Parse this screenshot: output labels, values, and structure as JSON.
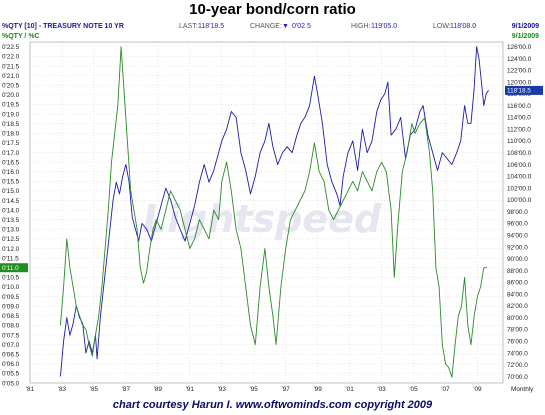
{
  "title": "10-year bond/corn ratio",
  "header": {
    "symbol": "%QTY [10] - TREASURY NOTE 10 YR",
    "last_label": "LAST:",
    "last_value": "118'18.5",
    "change_label": "CHANGE:",
    "change_value": "0'02.5",
    "high_label": "HIGH:",
    "high_value": "119'05.0",
    "low_label": "LOW:",
    "low_value": "118'08.0",
    "date": "9/1/2009",
    "symbol2": "%QTY / %C",
    "date2": "9/1/2009"
  },
  "watermark": "Lightspeed",
  "credit": "chart courtesy Harun I.  www.oftwominds.com  copyright 2009",
  "colors": {
    "bond": "#1c1ca8",
    "ratio": "#2a8a2a",
    "grid": "#c8c8c8",
    "ratio_marker": "#1f8f1f",
    "bond_marker": "#1a3aa8"
  },
  "chart_data": {
    "type": "line",
    "title": "10-year bond/corn ratio",
    "x_ticks": [
      "'81",
      "'83",
      "'85",
      "'87",
      "'89",
      "'91",
      "'93",
      "'95",
      "'97",
      "'99",
      "'01",
      "'03",
      "'05",
      "'07",
      "'09"
    ],
    "x_period_label": "Monthly",
    "xlim": [
      1981,
      2010.6
    ],
    "left_axis": {
      "ticks": [
        "0'22.5",
        "0'22.0",
        "0'21.5",
        "0'21.0",
        "0'20.5",
        "0'20.0",
        "0'19.5",
        "0'19.0",
        "0'18.5",
        "0'18.0",
        "0'17.5",
        "0'17.0",
        "0'16.5",
        "0'16.0",
        "0'15.5",
        "0'15.0",
        "0'14.5",
        "0'14.0",
        "0'13.5",
        "0'13.0",
        "0'12.5",
        "0'12.0",
        "0'11.5",
        "0'11.0",
        "0'10.5",
        "0'10.0",
        "0'09.5",
        "0'09.0",
        "0'08.5",
        "0'08.0",
        "0'07.5",
        "0'07.0",
        "0'06.5",
        "0'06.0",
        "0'05.5",
        "0'05.0"
      ],
      "ylim": [
        5.0,
        22.75
      ],
      "marker_label": "0'11.0",
      "marker_value": 11.0
    },
    "right_axis": {
      "ticks": [
        "126'00.0",
        "124'00.0",
        "122'00.0",
        "120'00.0",
        "118'00.0",
        "116'00.0",
        "114'00.0",
        "112'00.0",
        "110'00.0",
        "108'00.0",
        "106'00.0",
        "104'00.0",
        "102'00.0",
        "100'00.0",
        "98'00.0",
        "96'00.0",
        "94'00.0",
        "92'00.0",
        "90'00.0",
        "88'00.0",
        "86'00.0",
        "84'00.0",
        "82'00.0",
        "80'00.0",
        "78'00.0",
        "76'00.0",
        "74'00.0",
        "72'00.0",
        "70'00.0"
      ],
      "ylim": [
        68.9,
        126.8
      ],
      "marker_label": "118'18.5",
      "marker_value": 118.58
    },
    "series": [
      {
        "axis": "right",
        "points": [
          [
            1982.9,
            70.0
          ],
          [
            1983.1,
            76.0
          ],
          [
            1983.3,
            80.0
          ],
          [
            1983.5,
            77.0
          ],
          [
            1983.7,
            79.0
          ],
          [
            1983.9,
            82.0
          ],
          [
            1984.1,
            80.0
          ],
          [
            1984.3,
            79.0
          ],
          [
            1984.5,
            74.0
          ],
          [
            1984.7,
            76.0
          ],
          [
            1984.9,
            74.0
          ],
          [
            1985.1,
            77.0
          ],
          [
            1985.2,
            73.0
          ],
          [
            1985.4,
            80.0
          ],
          [
            1985.6,
            85.0
          ],
          [
            1985.8,
            90.0
          ],
          [
            1986.0,
            95.0
          ],
          [
            1986.2,
            100.0
          ],
          [
            1986.4,
            103.0
          ],
          [
            1986.6,
            101.0
          ],
          [
            1986.8,
            104.0
          ],
          [
            1987.0,
            106.0
          ],
          [
            1987.2,
            103.0
          ],
          [
            1987.4,
            97.0
          ],
          [
            1987.6,
            95.0
          ],
          [
            1987.8,
            93.0
          ],
          [
            1988.0,
            96.0
          ],
          [
            1988.3,
            95.0
          ],
          [
            1988.6,
            93.0
          ],
          [
            1988.9,
            96.0
          ],
          [
            1989.2,
            99.0
          ],
          [
            1989.5,
            102.0
          ],
          [
            1989.8,
            100.0
          ],
          [
            1990.1,
            97.0
          ],
          [
            1990.4,
            95.0
          ],
          [
            1990.7,
            93.0
          ],
          [
            1991.0,
            96.0
          ],
          [
            1991.3,
            99.0
          ],
          [
            1991.6,
            103.0
          ],
          [
            1991.9,
            106.0
          ],
          [
            1992.2,
            103.0
          ],
          [
            1992.5,
            105.0
          ],
          [
            1992.8,
            108.0
          ],
          [
            1993.0,
            110.0
          ],
          [
            1993.3,
            112.0
          ],
          [
            1993.6,
            115.0
          ],
          [
            1993.9,
            114.0
          ],
          [
            1994.2,
            108.0
          ],
          [
            1994.5,
            105.0
          ],
          [
            1994.8,
            101.0
          ],
          [
            1995.1,
            104.0
          ],
          [
            1995.4,
            108.0
          ],
          [
            1995.7,
            110.0
          ],
          [
            1995.95,
            113.0
          ],
          [
            1996.2,
            109.0
          ],
          [
            1996.5,
            106.0
          ],
          [
            1996.8,
            108.0
          ],
          [
            1997.1,
            109.0
          ],
          [
            1997.4,
            108.0
          ],
          [
            1997.7,
            111.0
          ],
          [
            1997.95,
            113.0
          ],
          [
            1998.2,
            114.0
          ],
          [
            1998.5,
            116.0
          ],
          [
            1998.8,
            121.0
          ],
          [
            1999.0,
            118.0
          ],
          [
            1999.3,
            113.0
          ],
          [
            1999.6,
            106.0
          ],
          [
            1999.9,
            103.0
          ],
          [
            2000.2,
            101.0
          ],
          [
            2000.4,
            99.0
          ],
          [
            2000.6,
            104.0
          ],
          [
            2000.9,
            108.0
          ],
          [
            2001.2,
            110.0
          ],
          [
            2001.5,
            105.0
          ],
          [
            2001.8,
            112.0
          ],
          [
            2002.1,
            108.0
          ],
          [
            2002.4,
            110.0
          ],
          [
            2002.7,
            115.0
          ],
          [
            2002.95,
            117.0
          ],
          [
            2003.2,
            118.0
          ],
          [
            2003.4,
            120.0
          ],
          [
            2003.6,
            111.0
          ],
          [
            2003.9,
            112.0
          ],
          [
            2004.2,
            114.0
          ],
          [
            2004.5,
            107.0
          ],
          [
            2004.8,
            111.0
          ],
          [
            2005.1,
            112.0
          ],
          [
            2005.4,
            115.0
          ],
          [
            2005.6,
            116.0
          ],
          [
            2005.9,
            111.0
          ],
          [
            2006.2,
            108.0
          ],
          [
            2006.5,
            105.0
          ],
          [
            2006.8,
            108.0
          ],
          [
            2007.1,
            107.0
          ],
          [
            2007.4,
            106.0
          ],
          [
            2007.7,
            108.0
          ],
          [
            2007.95,
            110.0
          ],
          [
            2008.2,
            116.0
          ],
          [
            2008.4,
            113.0
          ],
          [
            2008.6,
            113.0
          ],
          [
            2008.8,
            119.0
          ],
          [
            2008.95,
            126.0
          ],
          [
            2009.1,
            124.0
          ],
          [
            2009.25,
            120.0
          ],
          [
            2009.4,
            116.0
          ],
          [
            2009.55,
            118.0
          ],
          [
            2009.7,
            118.6
          ]
        ]
      },
      {
        "axis": "left",
        "points": [
          [
            1982.9,
            8.0
          ],
          [
            1983.1,
            10.0
          ],
          [
            1983.3,
            12.5
          ],
          [
            1983.5,
            11.0
          ],
          [
            1983.7,
            10.0
          ],
          [
            1983.9,
            9.0
          ],
          [
            1984.1,
            8.5
          ],
          [
            1984.3,
            8.0
          ],
          [
            1984.5,
            7.8
          ],
          [
            1984.7,
            7.0
          ],
          [
            1984.9,
            6.4
          ],
          [
            1985.1,
            7.5
          ],
          [
            1985.3,
            8.5
          ],
          [
            1985.5,
            10.0
          ],
          [
            1985.7,
            12.0
          ],
          [
            1985.9,
            14.0
          ],
          [
            1986.1,
            16.5
          ],
          [
            1986.3,
            18.0
          ],
          [
            1986.5,
            19.5
          ],
          [
            1986.7,
            22.5
          ],
          [
            1986.9,
            20.0
          ],
          [
            1987.1,
            17.5
          ],
          [
            1987.3,
            15.0
          ],
          [
            1987.5,
            14.0
          ],
          [
            1987.7,
            13.0
          ],
          [
            1987.9,
            11.0
          ],
          [
            1988.1,
            10.2
          ],
          [
            1988.3,
            10.8
          ],
          [
            1988.5,
            12.0
          ],
          [
            1988.7,
            13.0
          ],
          [
            1988.9,
            13.5
          ],
          [
            1989.2,
            13.0
          ],
          [
            1989.5,
            14.0
          ],
          [
            1989.8,
            15.0
          ],
          [
            1990.1,
            14.5
          ],
          [
            1990.4,
            14.0
          ],
          [
            1990.7,
            13.0
          ],
          [
            1991.0,
            12.0
          ],
          [
            1991.3,
            12.5
          ],
          [
            1991.6,
            13.5
          ],
          [
            1991.9,
            13.0
          ],
          [
            1992.2,
            12.5
          ],
          [
            1992.5,
            14.0
          ],
          [
            1992.8,
            13.5
          ],
          [
            1993.0,
            15.5
          ],
          [
            1993.3,
            16.5
          ],
          [
            1993.6,
            15.0
          ],
          [
            1993.9,
            13.0
          ],
          [
            1994.2,
            12.0
          ],
          [
            1994.5,
            10.0
          ],
          [
            1994.8,
            8.0
          ],
          [
            1995.1,
            7.0
          ],
          [
            1995.4,
            10.0
          ],
          [
            1995.7,
            12.0
          ],
          [
            1995.95,
            10.0
          ],
          [
            1996.2,
            8.5
          ],
          [
            1996.4,
            7.0
          ],
          [
            1996.7,
            10.0
          ],
          [
            1997.0,
            12.0
          ],
          [
            1997.3,
            13.5
          ],
          [
            1997.6,
            14.0
          ],
          [
            1997.9,
            14.5
          ],
          [
            1998.2,
            15.0
          ],
          [
            1998.5,
            16.0
          ],
          [
            1998.8,
            17.5
          ],
          [
            1999.1,
            16.0
          ],
          [
            1999.4,
            15.5
          ],
          [
            1999.7,
            14.0
          ],
          [
            2000.0,
            13.5
          ],
          [
            2000.3,
            14.0
          ],
          [
            2000.6,
            14.5
          ],
          [
            2000.9,
            15.0
          ],
          [
            2001.2,
            15.5
          ],
          [
            2001.5,
            15.0
          ],
          [
            2001.8,
            16.0
          ],
          [
            2002.1,
            15.5
          ],
          [
            2002.4,
            15.0
          ],
          [
            2002.7,
            16.0
          ],
          [
            2003.0,
            16.5
          ],
          [
            2003.3,
            16.0
          ],
          [
            2003.6,
            14.0
          ],
          [
            2003.8,
            10.5
          ],
          [
            2004.0,
            13.0
          ],
          [
            2004.3,
            16.0
          ],
          [
            2004.6,
            17.0
          ],
          [
            2004.9,
            18.5
          ],
          [
            2005.1,
            18.0
          ],
          [
            2005.4,
            18.5
          ],
          [
            2005.7,
            18.8
          ],
          [
            2006.0,
            17.0
          ],
          [
            2006.2,
            15.0
          ],
          [
            2006.4,
            11.0
          ],
          [
            2006.6,
            10.0
          ],
          [
            2006.8,
            7.0
          ],
          [
            2007.0,
            6.0
          ],
          [
            2007.2,
            5.8
          ],
          [
            2007.4,
            5.3
          ],
          [
            2007.6,
            7.0
          ],
          [
            2007.8,
            8.5
          ],
          [
            2008.0,
            9.0
          ],
          [
            2008.2,
            10.5
          ],
          [
            2008.4,
            8.0
          ],
          [
            2008.6,
            7.0
          ],
          [
            2008.8,
            8.5
          ],
          [
            2009.0,
            9.5
          ],
          [
            2009.2,
            10.0
          ],
          [
            2009.4,
            11.0
          ],
          [
            2009.6,
            11.0
          ]
        ]
      }
    ]
  }
}
